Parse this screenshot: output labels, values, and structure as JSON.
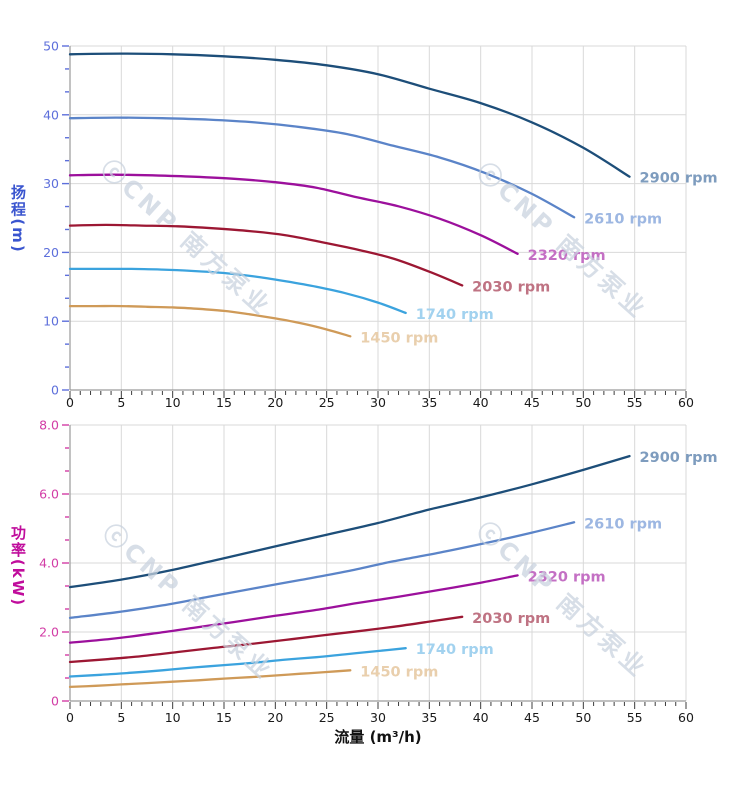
{
  "watermark": {
    "text": "ⓒCNP 南方泵业",
    "color": "#c8d2de"
  },
  "axis_style": {
    "grid_color": "#d9d9d9",
    "axis_line_color": "#9a9a9a",
    "x_tick_color": "#3c3c3c",
    "x_label_color": "#1a1a1a"
  },
  "x_axis": {
    "min": 0,
    "max": 60,
    "major_step": 5,
    "minor_step": 1,
    "tick_labels": [
      "0",
      "5",
      "10",
      "15",
      "20",
      "25",
      "30",
      "35",
      "40",
      "45",
      "50",
      "55",
      "60"
    ]
  },
  "chart_data": [
    {
      "type": "line",
      "name": "head-curves",
      "ylabel": "扬程(m)",
      "xlabel": "",
      "xlim": [
        0,
        60
      ],
      "ylim": [
        0,
        50
      ],
      "y_major_step": 10,
      "y_minors_between": 2,
      "y_tick_labels": [
        "0",
        "10",
        "20",
        "30",
        "40",
        "50"
      ],
      "axis_title_color": "#3a55cf",
      "tick_label_color": "#5d6fdb",
      "grid": true,
      "legend_position": "curve-end",
      "series": [
        {
          "name": "2900 rpm",
          "color": "#1d4e79",
          "label_color": "#7e9cbe",
          "points": [
            [
              0,
              48.8
            ],
            [
              5,
              48.9
            ],
            [
              10,
              48.8
            ],
            [
              15,
              48.5
            ],
            [
              20,
              48
            ],
            [
              25,
              47.2
            ],
            [
              30,
              45.9
            ],
            [
              35,
              43.8
            ],
            [
              40,
              41.7
            ],
            [
              45,
              38.9
            ],
            [
              50,
              35.2
            ],
            [
              54.5,
              31
            ]
          ]
        },
        {
          "name": "2610 rpm",
          "color": "#5b84c8",
          "label_color": "#9db7e2",
          "points": [
            [
              0,
              39.5
            ],
            [
              4.5,
              39.6
            ],
            [
              9,
              39.5
            ],
            [
              13.5,
              39.3
            ],
            [
              18,
              38.9
            ],
            [
              22.5,
              38.2
            ],
            [
              27,
              37.2
            ],
            [
              31.5,
              35.5
            ],
            [
              36,
              33.8
            ],
            [
              40.5,
              31.5
            ],
            [
              45,
              28.5
            ],
            [
              49.1,
              25.1
            ]
          ]
        },
        {
          "name": "2320 rpm",
          "color": "#9c109c",
          "label_color": "#c470c4",
          "points": [
            [
              0,
              31.2
            ],
            [
              4,
              31.3
            ],
            [
              8,
              31.2
            ],
            [
              12,
              31
            ],
            [
              16,
              30.7
            ],
            [
              20,
              30.2
            ],
            [
              24,
              29.4
            ],
            [
              28,
              28
            ],
            [
              32,
              26.7
            ],
            [
              36,
              24.9
            ],
            [
              40,
              22.5
            ],
            [
              43.6,
              19.8
            ]
          ]
        },
        {
          "name": "2030 rpm",
          "color": "#9c1733",
          "label_color": "#bf7383",
          "points": [
            [
              0,
              23.9
            ],
            [
              3.5,
              24
            ],
            [
              7,
              23.9
            ],
            [
              10.5,
              23.8
            ],
            [
              14,
              23.5
            ],
            [
              17.5,
              23.1
            ],
            [
              21,
              22.5
            ],
            [
              24.5,
              21.5
            ],
            [
              28,
              20.4
            ],
            [
              31.5,
              19.1
            ],
            [
              35,
              17.2
            ],
            [
              38.2,
              15.2
            ]
          ]
        },
        {
          "name": "1740 rpm",
          "color": "#3ba3de",
          "label_color": "#a2d2ef",
          "points": [
            [
              0,
              17.6
            ],
            [
              3,
              17.6
            ],
            [
              6,
              17.6
            ],
            [
              9,
              17.5
            ],
            [
              12,
              17.3
            ],
            [
              15,
              17
            ],
            [
              18,
              16.5
            ],
            [
              21,
              15.8
            ],
            [
              24,
              15
            ],
            [
              27,
              14
            ],
            [
              30,
              12.7
            ],
            [
              32.7,
              11.2
            ]
          ]
        },
        {
          "name": "1450 rpm",
          "color": "#cf9a58",
          "label_color": "#e9cfad",
          "points": [
            [
              0,
              12.2
            ],
            [
              2.5,
              12.2
            ],
            [
              5,
              12.2
            ],
            [
              7.5,
              12.1
            ],
            [
              10,
              12
            ],
            [
              12.5,
              11.8
            ],
            [
              15,
              11.5
            ],
            [
              17.5,
              11
            ],
            [
              20,
              10.4
            ],
            [
              22.5,
              9.7
            ],
            [
              25,
              8.8
            ],
            [
              27.3,
              7.8
            ]
          ]
        }
      ]
    },
    {
      "type": "line",
      "name": "power-curves",
      "ylabel": "功率(kW)",
      "xlabel": "流量 (m³/h)",
      "xlim": [
        0,
        60
      ],
      "ylim": [
        0,
        8
      ],
      "y_major_step": 2,
      "y_minors_between": 2,
      "y_tick_labels": [
        "0",
        "2.0",
        "4.0",
        "6.0",
        "8.0"
      ],
      "axis_title_color": "#c00d9c",
      "tick_label_color": "#d23da6",
      "grid": true,
      "legend_position": "curve-end",
      "series": [
        {
          "name": "2900 rpm",
          "color": "#1d4e79",
          "label_color": "#7e9cbe",
          "points": [
            [
              0,
              3.3
            ],
            [
              5,
              3.52
            ],
            [
              10,
              3.8
            ],
            [
              15,
              4.14
            ],
            [
              20,
              4.48
            ],
            [
              25,
              4.82
            ],
            [
              30,
              5.16
            ],
            [
              35,
              5.55
            ],
            [
              40,
              5.9
            ],
            [
              45,
              6.28
            ],
            [
              50,
              6.7
            ],
            [
              54.5,
              7.1
            ]
          ]
        },
        {
          "name": "2610 rpm",
          "color": "#5b84c8",
          "label_color": "#9db7e2",
          "points": [
            [
              0,
              2.41
            ],
            [
              4.5,
              2.57
            ],
            [
              9,
              2.77
            ],
            [
              13.5,
              3.02
            ],
            [
              18,
              3.27
            ],
            [
              22.5,
              3.51
            ],
            [
              27,
              3.76
            ],
            [
              31.5,
              4.05
            ],
            [
              36,
              4.3
            ],
            [
              40.5,
              4.58
            ],
            [
              45,
              4.88
            ],
            [
              49.1,
              5.18
            ]
          ]
        },
        {
          "name": "2320 rpm",
          "color": "#9c109c",
          "label_color": "#c470c4",
          "points": [
            [
              0,
              1.69
            ],
            [
              4,
              1.8
            ],
            [
              8,
              1.95
            ],
            [
              12,
              2.12
            ],
            [
              16,
              2.29
            ],
            [
              20,
              2.47
            ],
            [
              24,
              2.64
            ],
            [
              28,
              2.84
            ],
            [
              32,
              3.02
            ],
            [
              36,
              3.22
            ],
            [
              40,
              3.43
            ],
            [
              43.6,
              3.64
            ]
          ]
        },
        {
          "name": "2030 rpm",
          "color": "#9c1733",
          "label_color": "#bf7383",
          "points": [
            [
              0,
              1.13
            ],
            [
              3.5,
              1.21
            ],
            [
              7,
              1.3
            ],
            [
              10.5,
              1.42
            ],
            [
              14,
              1.54
            ],
            [
              17.5,
              1.65
            ],
            [
              21,
              1.77
            ],
            [
              24.5,
              1.9
            ],
            [
              28,
              2.02
            ],
            [
              31.5,
              2.15
            ],
            [
              35,
              2.3
            ],
            [
              38.2,
              2.44
            ]
          ]
        },
        {
          "name": "1740 rpm",
          "color": "#3ba3de",
          "label_color": "#a2d2ef",
          "points": [
            [
              0,
              0.71
            ],
            [
              3,
              0.76
            ],
            [
              6,
              0.82
            ],
            [
              9,
              0.89
            ],
            [
              12,
              0.97
            ],
            [
              15,
              1.04
            ],
            [
              18,
              1.11
            ],
            [
              21,
              1.2
            ],
            [
              24,
              1.27
            ],
            [
              27,
              1.36
            ],
            [
              30,
              1.45
            ],
            [
              32.7,
              1.53
            ]
          ]
        },
        {
          "name": "1450 rpm",
          "color": "#cf9a58",
          "label_color": "#e9cfad",
          "points": [
            [
              0,
              0.41
            ],
            [
              2.5,
              0.44
            ],
            [
              5,
              0.48
            ],
            [
              7.5,
              0.52
            ],
            [
              10,
              0.56
            ],
            [
              12.5,
              0.6
            ],
            [
              15,
              0.65
            ],
            [
              17.5,
              0.69
            ],
            [
              20,
              0.74
            ],
            [
              22.5,
              0.79
            ],
            [
              25,
              0.84
            ],
            [
              27.3,
              0.89
            ]
          ]
        }
      ]
    }
  ]
}
